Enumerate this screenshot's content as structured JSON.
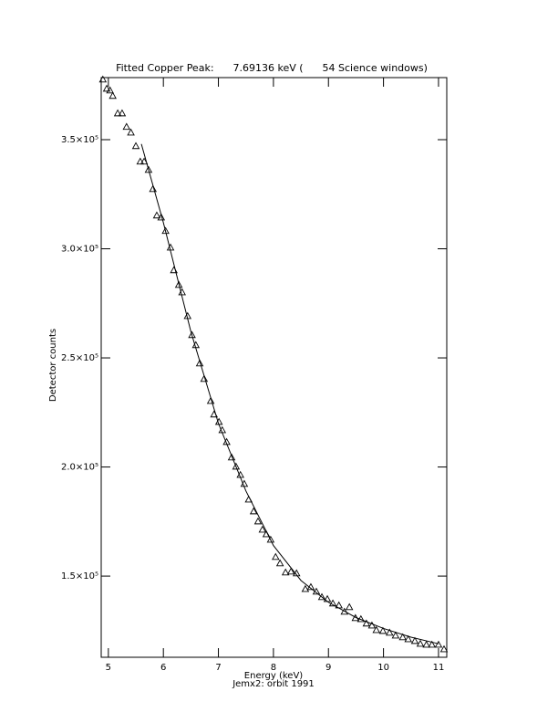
{
  "chart_data": {
    "type": "scatter",
    "title": "Fitted Copper Peak:      7.69136 keV (      54 Science windows)",
    "x_label": "Energy (keV)",
    "subtitle": "Jemx2: orbit 1991",
    "y_label": "Detector counts",
    "xlim": [
      4.87,
      11.15
    ],
    "ylim": [
      112800,
      378450
    ],
    "xticks": [
      5,
      6,
      7,
      8,
      9,
      10,
      11
    ],
    "yticks": [
      {
        "value": 150000,
        "label": "1.5×10⁵"
      },
      {
        "value": 200000,
        "label": "2.0×10⁵"
      },
      {
        "value": 250000,
        "label": "2.5×10⁵"
      },
      {
        "value": 300000,
        "label": "3.0×10⁵"
      },
      {
        "value": 350000,
        "label": "3.5×10⁵"
      }
    ],
    "series": [
      {
        "marker": "triangle",
        "color": "#000000",
        "x": [
          4.9,
          4.97,
          5.03,
          5.08,
          5.17,
          5.25,
          5.33,
          5.41,
          5.5,
          5.58,
          5.65,
          5.73,
          5.81,
          5.88,
          5.96,
          6.04,
          6.13,
          6.19,
          6.28,
          6.34,
          6.44,
          6.52,
          6.59,
          6.66,
          6.74,
          6.86,
          6.92,
          7.01,
          7.07,
          7.15,
          7.24,
          7.32,
          7.4,
          7.47,
          7.55,
          7.64,
          7.72,
          7.8,
          7.87,
          7.95,
          8.04,
          8.12,
          8.22,
          8.32,
          8.42,
          8.58,
          8.68,
          8.78,
          8.88,
          8.98,
          9.08,
          9.19,
          9.29,
          9.38,
          9.49,
          9.59,
          9.69,
          9.79,
          9.87,
          9.99,
          10.11,
          10.22,
          10.35,
          10.45,
          10.57,
          10.67,
          10.78,
          10.88,
          11.0,
          11.1
        ],
        "values": [
          377600,
          373400,
          372600,
          370100,
          362100,
          362100,
          355900,
          353300,
          347100,
          340000,
          340000,
          336200,
          327400,
          315300,
          314400,
          308200,
          300600,
          290200,
          283500,
          280100,
          269200,
          260500,
          255900,
          247500,
          240400,
          230300,
          224100,
          220700,
          216900,
          211500,
          204400,
          200200,
          196400,
          192300,
          185100,
          179700,
          175100,
          171300,
          169200,
          166700,
          158800,
          155900,
          151700,
          152100,
          151300,
          144100,
          145000,
          142900,
          140400,
          139500,
          137500,
          136600,
          133700,
          135800,
          130800,
          130300,
          128300,
          127400,
          125300,
          124900,
          124100,
          122800,
          122000,
          121100,
          120300,
          119000,
          118600,
          118600,
          118600,
          116500
        ]
      },
      {
        "marker": "line",
        "color": "#000000",
        "x": [
          5.6,
          6.0,
          6.5,
          7.0,
          7.5,
          8.0,
          8.5,
          9.0,
          9.5,
          10.0,
          10.5,
          11.0
        ],
        "values": [
          348000,
          312000,
          262000,
          220000,
          189000,
          164000,
          148000,
          138000,
          131000,
          126000,
          122000,
          119000
        ]
      }
    ]
  }
}
